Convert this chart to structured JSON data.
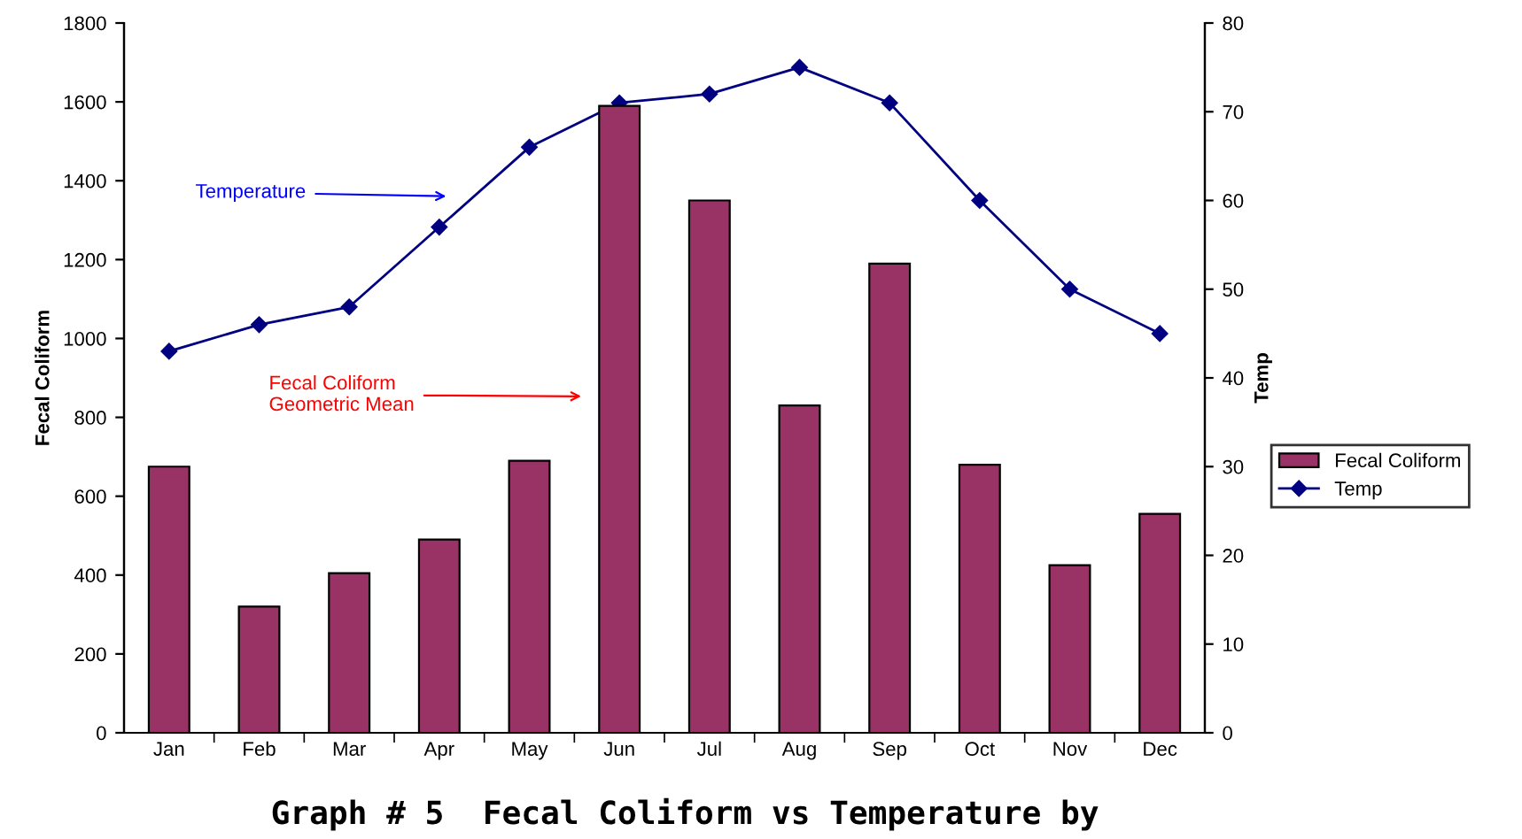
{
  "chart_data": {
    "type": "bar",
    "title": "Graph # 5  Fecal Coliform vs Temperature by",
    "categories": [
      "Jan",
      "Feb",
      "Mar",
      "Apr",
      "May",
      "Jun",
      "Jul",
      "Aug",
      "Sep",
      "Oct",
      "Nov",
      "Dec"
    ],
    "series": [
      {
        "name": "Fecal Coliform",
        "color": "#993366",
        "values": [
          675,
          320,
          405,
          490,
          690,
          1590,
          1350,
          830,
          1190,
          680,
          425,
          555
        ]
      },
      {
        "name": "Temp",
        "type": "line",
        "axis": "y2",
        "color": "#000080",
        "marker": "diamond",
        "values": [
          43,
          46,
          48,
          57,
          66,
          71,
          72,
          75,
          71,
          60,
          50,
          45
        ]
      }
    ],
    "ylabel": "Fecal Coliform",
    "y2label": "Temp",
    "ylim": [
      0,
      1800
    ],
    "yticks": [
      0,
      200,
      400,
      600,
      800,
      1000,
      1200,
      1400,
      1600,
      1800
    ],
    "y2lim": [
      0,
      80
    ],
    "y2ticks": [
      0,
      10,
      20,
      30,
      40,
      50,
      60,
      70,
      80
    ],
    "annotations": [
      "Temperature",
      "Fecal Coliform\nGeometric Mean"
    ],
    "legend": "right",
    "grid": false
  }
}
